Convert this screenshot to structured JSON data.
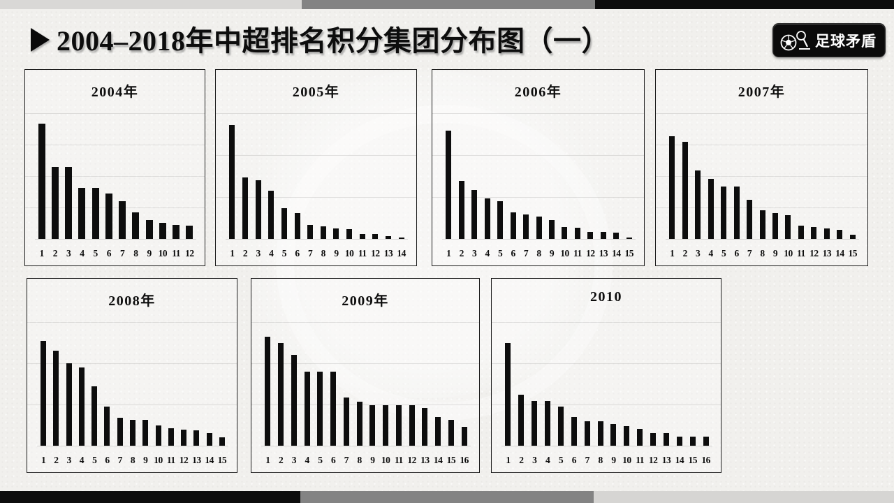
{
  "page": {
    "title": "2004–2018年中超排名积分集团分布图（一）",
    "title_marker": "right-pointing-triangle",
    "logo": {
      "text": "足球矛盾"
    },
    "colors": {
      "background": "#f1f0ed",
      "bar": "#0d0d0d",
      "strip_light_gray": "#d9d8d6",
      "strip_mid_gray": "#838383",
      "strip_black": "#0d0d0d"
    }
  },
  "chart_value_note": "no y-axis tick labels are visible; values are relative bar heights estimated from pixels",
  "chart_data": [
    {
      "type": "bar",
      "title": "2004年",
      "categories": [
        "1",
        "2",
        "3",
        "4",
        "5",
        "6",
        "7",
        "8",
        "9",
        "10",
        "11",
        "12"
      ],
      "values": [
        165,
        103,
        103,
        73,
        73,
        65,
        54,
        38,
        27,
        23,
        20,
        19
      ],
      "gridline_intervals": 4,
      "xlabel": "",
      "ylabel": "",
      "y_axis": "unlabeled",
      "grid": true,
      "legend": "none"
    },
    {
      "type": "bar",
      "title": "2005年",
      "categories": [
        "1",
        "2",
        "3",
        "4",
        "5",
        "6",
        "7",
        "8",
        "9",
        "10",
        "11",
        "12",
        "13",
        "14"
      ],
      "values": [
        163,
        88,
        84,
        69,
        44,
        37,
        20,
        18,
        15,
        14,
        7,
        7,
        4,
        2
      ],
      "gridline_intervals": 3,
      "xlabel": "",
      "ylabel": "",
      "y_axis": "unlabeled",
      "grid": true,
      "legend": "none"
    },
    {
      "type": "bar",
      "title": "2006年",
      "categories": [
        "1",
        "2",
        "3",
        "4",
        "5",
        "6",
        "7",
        "8",
        "9",
        "10",
        "11",
        "12",
        "13",
        "14",
        "15"
      ],
      "values": [
        155,
        83,
        70,
        58,
        54,
        38,
        35,
        32,
        27,
        17,
        16,
        10,
        10,
        9,
        2
      ],
      "gridline_intervals": 3,
      "xlabel": "",
      "ylabel": "",
      "y_axis": "unlabeled",
      "grid": true,
      "legend": "none"
    },
    {
      "type": "bar",
      "title": "2007年",
      "categories": [
        "1",
        "2",
        "3",
        "4",
        "5",
        "6",
        "7",
        "8",
        "9",
        "10",
        "11",
        "12",
        "13",
        "14",
        "15"
      ],
      "values": [
        147,
        139,
        98,
        86,
        75,
        75,
        56,
        41,
        37,
        34,
        19,
        17,
        15,
        13,
        6
      ],
      "gridline_intervals": 4,
      "xlabel": "",
      "ylabel": "",
      "y_axis": "unlabeled",
      "grid": true,
      "legend": "none"
    },
    {
      "type": "bar",
      "title": "2008年",
      "categories": [
        "1",
        "2",
        "3",
        "4",
        "5",
        "6",
        "7",
        "8",
        "9",
        "10",
        "11",
        "12",
        "13",
        "14",
        "15"
      ],
      "values": [
        150,
        136,
        118,
        112,
        85,
        56,
        40,
        37,
        37,
        29,
        25,
        23,
        22,
        18,
        12
      ],
      "gridline_intervals": 3,
      "xlabel": "",
      "ylabel": "",
      "y_axis": "unlabeled",
      "grid": true,
      "legend": "none"
    },
    {
      "type": "bar",
      "title": "2009年",
      "categories": [
        "1",
        "2",
        "3",
        "4",
        "5",
        "6",
        "7",
        "8",
        "9",
        "10",
        "11",
        "12",
        "13",
        "14",
        "15",
        "16"
      ],
      "values": [
        156,
        147,
        130,
        106,
        106,
        106,
        69,
        63,
        58,
        58,
        58,
        58,
        54,
        41,
        37,
        27
      ],
      "gridline_intervals": 3,
      "xlabel": "",
      "ylabel": "",
      "y_axis": "unlabeled",
      "grid": true,
      "legend": "none"
    },
    {
      "type": "bar",
      "title": "2010",
      "categories": [
        "1",
        "2",
        "3",
        "4",
        "5",
        "6",
        "7",
        "8",
        "9",
        "10",
        "11",
        "12",
        "13",
        "14",
        "15",
        "16"
      ],
      "values": [
        147,
        73,
        64,
        64,
        56,
        41,
        35,
        35,
        31,
        28,
        24,
        18,
        18,
        13,
        13,
        13
      ],
      "gridline_intervals": 3,
      "xlabel": "",
      "ylabel": "",
      "y_axis": "unlabeled",
      "grid": true,
      "legend": "none"
    }
  ]
}
